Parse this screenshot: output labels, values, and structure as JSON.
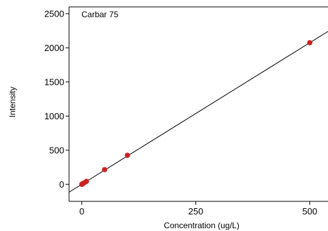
{
  "chart_data": {
    "type": "scatter",
    "title": "Carbar 75",
    "xlabel": "Concentration (ug/L)",
    "ylabel": "Intensity",
    "xlim": [
      -28,
      540
    ],
    "ylim": [
      -250,
      2600
    ],
    "xticks": [
      0,
      250,
      500
    ],
    "xtick_labels": [
      "0",
      "250",
      "500"
    ],
    "yticks": [
      0,
      500,
      1000,
      1500,
      2000,
      2500
    ],
    "ytick_labels": [
      "0",
      "500",
      "1000",
      "1500",
      "2000",
      "2500"
    ],
    "grid": false,
    "points": [
      {
        "x": 0,
        "y": 0
      },
      {
        "x": 1,
        "y": 5
      },
      {
        "x": 2,
        "y": 9
      },
      {
        "x": 5,
        "y": 21
      },
      {
        "x": 10,
        "y": 42
      },
      {
        "x": 50,
        "y": 215
      },
      {
        "x": 100,
        "y": 425
      },
      {
        "x": 500,
        "y": 2075
      }
    ],
    "fit_line": {
      "slope": 4.15,
      "intercept": 0
    },
    "point_color": "#cc2222",
    "line_color": "#000000"
  }
}
